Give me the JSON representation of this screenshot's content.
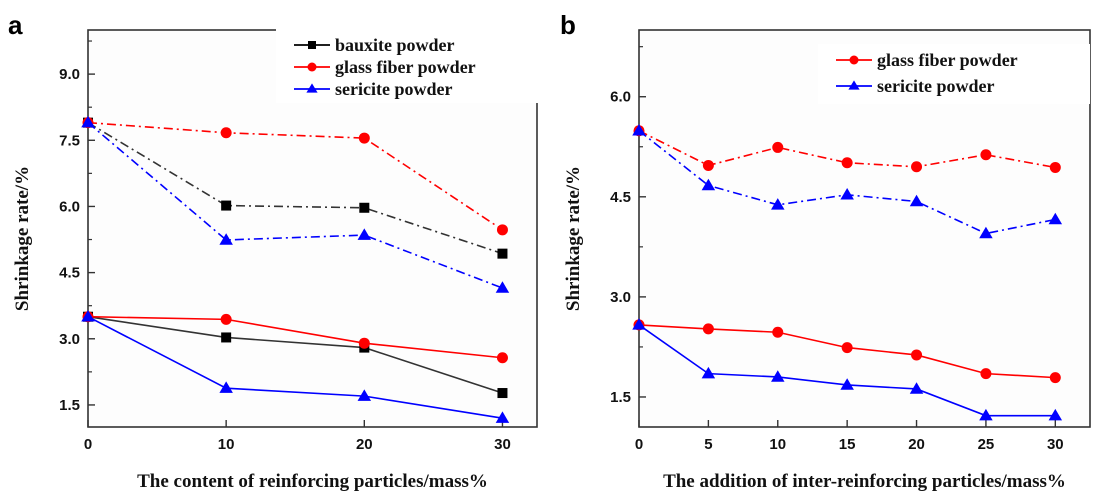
{
  "chart_data": [
    {
      "panel": "a",
      "type": "line",
      "title": "",
      "xlabel": "The content of reinforcing particles/mass%",
      "ylabel": "Shrinkage rate/%",
      "xlim": [
        0,
        32.5
      ],
      "ylim": [
        1.0,
        10.0
      ],
      "xticks": [
        0,
        10,
        20,
        30
      ],
      "xtick_labels": [
        "0",
        "10",
        "20",
        "30"
      ],
      "yticks": [
        1.5,
        3.0,
        4.5,
        6.0,
        7.5,
        9.0
      ],
      "ytick_labels": [
        "1.5",
        "3.0",
        "4.5",
        "6.0",
        "7.5",
        "9.0"
      ],
      "grid": false,
      "legend_position": "top-right",
      "legend": [
        {
          "label": "bauxite powder",
          "color": "#000000",
          "marker": "square"
        },
        {
          "label": "glass fiber powder",
          "color": "#ff0000",
          "marker": "circle"
        },
        {
          "label": "sericite powder",
          "color": "#0000ff",
          "marker": "triangle"
        }
      ],
      "x": [
        0,
        10,
        20,
        30
      ],
      "series": [
        {
          "name": "bauxite powder (dash-dot)",
          "color": "#000000",
          "marker": "square",
          "style": "dashdot",
          "values": [
            7.9,
            6.02,
            5.97,
            4.93
          ]
        },
        {
          "name": "glass fiber powder (dash-dot)",
          "color": "#ff0000",
          "marker": "circle",
          "style": "dashdot",
          "values": [
            7.9,
            7.67,
            7.55,
            5.47
          ]
        },
        {
          "name": "sericite powder (dash-dot)",
          "color": "#0000ff",
          "marker": "triangle",
          "style": "dashdot",
          "values": [
            7.9,
            5.24,
            5.35,
            4.15
          ]
        },
        {
          "name": "bauxite powder (solid)",
          "color": "#000000",
          "marker": "square",
          "style": "solid",
          "values": [
            3.5,
            3.03,
            2.8,
            1.77
          ]
        },
        {
          "name": "glass fiber powder (solid)",
          "color": "#ff0000",
          "marker": "circle",
          "style": "solid",
          "values": [
            3.5,
            3.44,
            2.9,
            2.57
          ]
        },
        {
          "name": "sericite powder (solid)",
          "color": "#0000ff",
          "marker": "triangle",
          "style": "solid",
          "values": [
            3.5,
            1.88,
            1.7,
            1.2
          ]
        }
      ]
    },
    {
      "panel": "b",
      "type": "line",
      "title": "",
      "xlabel": "The addition of inter-reinforcing particles/mass%",
      "ylabel": "Shrinkage rate/%",
      "xlim": [
        0,
        32.5
      ],
      "ylim": [
        1.05,
        7.0
      ],
      "xticks": [
        0,
        5,
        10,
        15,
        20,
        25,
        30
      ],
      "xtick_labels": [
        "0",
        "5",
        "10",
        "15",
        "20",
        "25",
        "30"
      ],
      "yticks": [
        1.5,
        3.0,
        4.5,
        6.0
      ],
      "ytick_labels": [
        "1.5",
        "3.0",
        "4.5",
        "6.0"
      ],
      "grid": false,
      "legend_position": "top-right",
      "legend": [
        {
          "label": "glass fiber powder",
          "color": "#ff0000",
          "marker": "circle"
        },
        {
          "label": "sericite powder",
          "color": "#0000ff",
          "marker": "triangle"
        }
      ],
      "x": [
        0,
        5,
        10,
        15,
        20,
        25,
        30
      ],
      "series": [
        {
          "name": "glass fiber powder (dash-dot)",
          "color": "#ff0000",
          "marker": "circle",
          "style": "dashdot",
          "values": [
            5.49,
            4.97,
            5.24,
            5.01,
            4.95,
            5.13,
            4.94
          ]
        },
        {
          "name": "sericite powder (dash-dot)",
          "color": "#0000ff",
          "marker": "triangle",
          "style": "dashdot",
          "values": [
            5.49,
            4.67,
            4.38,
            4.53,
            4.43,
            3.95,
            4.16
          ]
        },
        {
          "name": "glass fiber powder (solid)",
          "color": "#ff0000",
          "marker": "circle",
          "style": "solid",
          "values": [
            2.58,
            2.52,
            2.47,
            2.24,
            2.13,
            1.85,
            1.79
          ]
        },
        {
          "name": "sericite powder (solid)",
          "color": "#0000ff",
          "marker": "triangle",
          "style": "solid",
          "values": [
            2.58,
            1.85,
            1.8,
            1.68,
            1.62,
            1.22,
            1.22
          ]
        }
      ]
    }
  ]
}
